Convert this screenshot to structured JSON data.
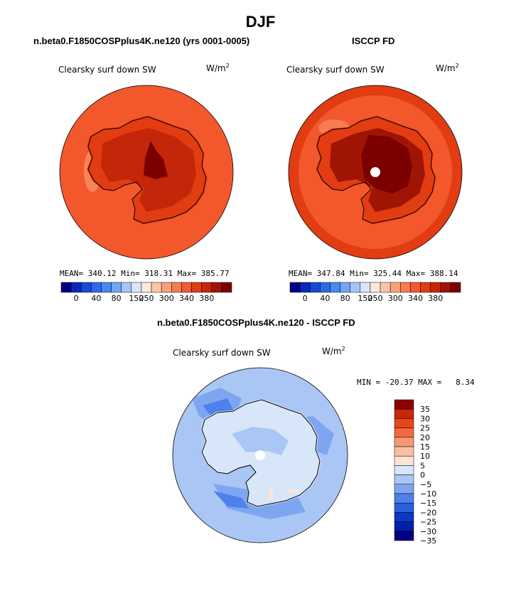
{
  "figure": {
    "title": "DJF"
  },
  "colors": {
    "warm_scale": [
      "#00008b",
      "#0a29b8",
      "#1848d9",
      "#2d6ae6",
      "#4a88f0",
      "#72a6f4",
      "#a6c4f7",
      "#d8e6fb",
      "#fde8dc",
      "#fbc6a6",
      "#f9a27a",
      "#f67c52",
      "#f25a2f",
      "#e23c12",
      "#c4260a",
      "#a01406",
      "#7d0000"
    ],
    "diff_scale": [
      "#000080",
      "#0020a8",
      "#0a38c8",
      "#2a5fe0",
      "#5080ea",
      "#7ea6f0",
      "#aac6f4",
      "#d8e6fa",
      "#fde4d4",
      "#fbc0a0",
      "#f89870",
      "#f36a3e",
      "#e84618",
      "#c82808",
      "#8b0000"
    ]
  },
  "chart_data": [
    {
      "type": "heatmap",
      "projection": "south polar stereographic",
      "title": "n.beta0.F1850COSPplus4K.ne120 (yrs 0001-0005)",
      "variable": "Clearsky surf down SW",
      "units": "W/m",
      "units_exp": "2",
      "stats": {
        "mean_label": "MEAN=",
        "mean": "340.12",
        "min_label": "Min=",
        "min": "318.31",
        "max_label": "Max=",
        "max": "385.77"
      },
      "colorbar_levels": [
        0,
        40,
        80,
        150,
        250,
        300,
        340,
        380
      ],
      "colorbar_ticks": [
        "0",
        "40",
        "80",
        "150",
        "250",
        "300",
        "340",
        "380"
      ]
    },
    {
      "type": "heatmap",
      "projection": "south polar stereographic",
      "title": "ISCCP FD",
      "variable": "Clearsky surf down SW",
      "units": "W/m",
      "units_exp": "2",
      "stats": {
        "mean_label": "MEAN=",
        "mean": "347.84",
        "min_label": "Min=",
        "min": "325.44",
        "max_label": "Max=",
        "max": "388.14"
      },
      "colorbar_levels": [
        0,
        40,
        80,
        150,
        250,
        300,
        340,
        380
      ],
      "colorbar_ticks": [
        "0",
        "40",
        "80",
        "150",
        "250",
        "300",
        "340",
        "380"
      ]
    },
    {
      "type": "heatmap",
      "projection": "south polar stereographic",
      "title": "n.beta0.F1850COSPplus4K.ne120 - ISCCP FD",
      "variable": "Clearsky surf down SW",
      "units": "W/m",
      "units_exp": "2",
      "stats_line": "MIN = -20.37 MAX =   8.34",
      "colorbar_levels": [
        35,
        30,
        25,
        20,
        15,
        10,
        5,
        0,
        -5,
        -10,
        -15,
        -20,
        -25,
        -30,
        -35
      ],
      "colorbar_ticks": [
        "35",
        "30",
        "25",
        "20",
        "15",
        "10",
        "5",
        "0",
        "−5",
        "−10",
        "−15",
        "−20",
        "−25",
        "−30",
        "−35"
      ]
    }
  ]
}
